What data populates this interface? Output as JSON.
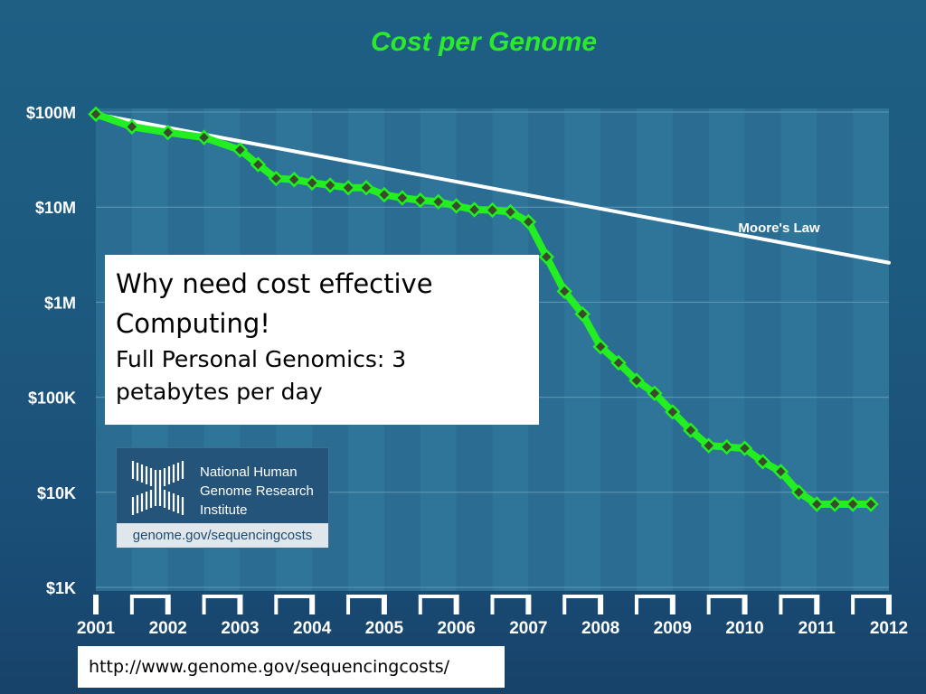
{
  "title": "Cost per Genome",
  "colors": {
    "title": "#2bea2b",
    "series": "#22ee22",
    "marker": "#3a4a2a",
    "trend": "#ffffff",
    "axis_text": "#ffffff"
  },
  "note": {
    "heading_line1": "Why need cost effective",
    "heading_line2": "Computing!",
    "sub_line1": "Full Personal Genomics: 3",
    "sub_line2": "petabytes per day"
  },
  "logo": {
    "icon": "nhgri-double-helix-logo",
    "name_line1": "National Human",
    "name_line2": "Genome Research",
    "name_line3": "Institute",
    "url": "genome.gov/sequencingcosts"
  },
  "source_url": "http://www.genome.gov/sequencingcosts/",
  "chart_data": {
    "type": "line",
    "title": "Cost per Genome",
    "xlabel": "",
    "ylabel": "",
    "y_scale": "log",
    "ylim": [
      1000,
      100000000
    ],
    "xlim": [
      2001.0,
      2012.0
    ],
    "y_ticks": [
      {
        "value": 100000000,
        "label": "$100M"
      },
      {
        "value": 10000000,
        "label": "$10M"
      },
      {
        "value": 1000000,
        "label": "$1M"
      },
      {
        "value": 100000,
        "label": "$100K"
      },
      {
        "value": 10000,
        "label": "$10K"
      },
      {
        "value": 1000,
        "label": "$1K"
      }
    ],
    "x_ticks": [
      "2001",
      "2002",
      "2003",
      "2004",
      "2005",
      "2006",
      "2007",
      "2008",
      "2009",
      "2010",
      "2011",
      "2012"
    ],
    "grid": true,
    "series": [
      {
        "name": "",
        "x": [
          2001.0,
          2001.5,
          2002.0,
          2002.5,
          2003.0,
          2003.25,
          2003.5,
          2003.75,
          2004.0,
          2004.25,
          2004.5,
          2004.75,
          2005.0,
          2005.25,
          2005.5,
          2005.75,
          2006.0,
          2006.25,
          2006.5,
          2006.75,
          2007.0,
          2007.25,
          2007.5,
          2007.75,
          2008.0,
          2008.25,
          2008.5,
          2008.75,
          2009.0,
          2009.25,
          2009.5,
          2009.75,
          2010.0,
          2010.25,
          2010.5,
          2010.75,
          2011.0,
          2011.25,
          2011.5,
          2011.75
        ],
        "y": [
          95000000,
          70000000,
          61000000,
          54000000,
          40000000,
          28000000,
          20000000,
          19500000,
          18000000,
          17000000,
          16000000,
          16000000,
          13500000,
          12500000,
          11800000,
          11400000,
          10300000,
          9400000,
          9300000,
          8900000,
          7000000,
          3000000,
          1300000,
          750000,
          340000,
          230000,
          150000,
          110000,
          70000,
          45000,
          31000,
          30000,
          29000,
          21000,
          16500,
          10000,
          7500,
          7500,
          7500,
          7500
        ]
      },
      {
        "name": "Moore's Law",
        "x": [
          2001.0,
          2012.0
        ],
        "y": [
          95000000,
          2600000
        ]
      }
    ]
  }
}
